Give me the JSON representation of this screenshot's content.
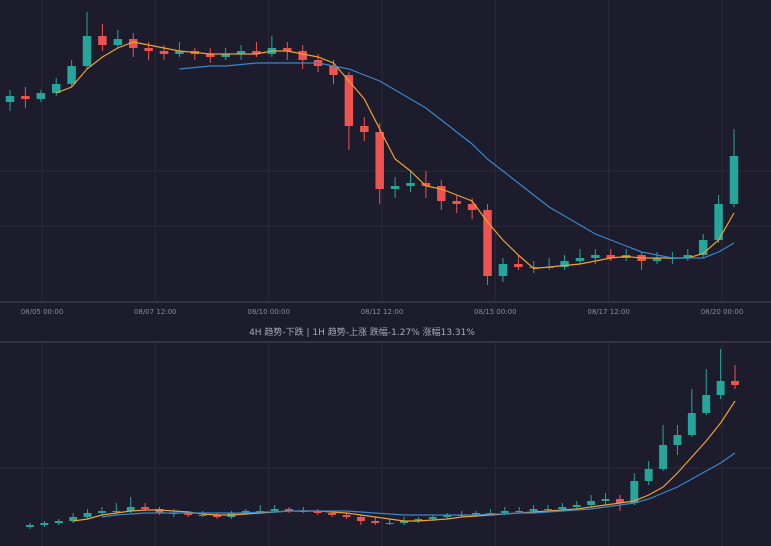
{
  "chart_data": [
    {
      "type": "candlestick",
      "up_color": "#26a69a",
      "down_color": "#ef5350",
      "ylim": [
        0,
        100
      ],
      "x_labels": [
        "08/05 00:00",
        "08/07 12:00",
        "08/10 00:00",
        "08/12 12:00",
        "08/15 00:00",
        "08/17 12:00",
        "08/20 00:00"
      ],
      "candles": [
        [
          66,
          70,
          63,
          68
        ],
        [
          68,
          71,
          64,
          67
        ],
        [
          67,
          70,
          66,
          69
        ],
        [
          69,
          74,
          68,
          72
        ],
        [
          72,
          80,
          71,
          78
        ],
        [
          78,
          96,
          77,
          88
        ],
        [
          88,
          92,
          83,
          85
        ],
        [
          85,
          90,
          84,
          87
        ],
        [
          87,
          89,
          81,
          84
        ],
        [
          84,
          86,
          80,
          83
        ],
        [
          83,
          85,
          80,
          82
        ],
        [
          82,
          86,
          81,
          83
        ],
        [
          83,
          84,
          80,
          82
        ],
        [
          82,
          84,
          79,
          81
        ],
        [
          81,
          84,
          80,
          82
        ],
        [
          82,
          85,
          80,
          83
        ],
        [
          83,
          86,
          81,
          82
        ],
        [
          82,
          88,
          81,
          84
        ],
        [
          84,
          86,
          80,
          83
        ],
        [
          83,
          85,
          77,
          80
        ],
        [
          80,
          82,
          76,
          78
        ],
        [
          78,
          80,
          72,
          75
        ],
        [
          75,
          76,
          50,
          58
        ],
        [
          58,
          61,
          53,
          56
        ],
        [
          56,
          59,
          32,
          37
        ],
        [
          37,
          41,
          34,
          38
        ],
        [
          38,
          43,
          36,
          39
        ],
        [
          39,
          43,
          34,
          38
        ],
        [
          38,
          40,
          30,
          33
        ],
        [
          33,
          35,
          29,
          32
        ],
        [
          32,
          34,
          27,
          30
        ],
        [
          30,
          32,
          5,
          8
        ],
        [
          8,
          14,
          6,
          12
        ],
        [
          12,
          15,
          10,
          11
        ],
        [
          11,
          13,
          9,
          11
        ],
        [
          11,
          14,
          10,
          11
        ],
        [
          11,
          15,
          10,
          13
        ],
        [
          13,
          17,
          12,
          14
        ],
        [
          14,
          17,
          12,
          15
        ],
        [
          15,
          17,
          13,
          14
        ],
        [
          14,
          17,
          13,
          15
        ],
        [
          15,
          16,
          10,
          13
        ],
        [
          13,
          16,
          12,
          14
        ],
        [
          14,
          16,
          12,
          14
        ],
        [
          14,
          17,
          13,
          15
        ],
        [
          15,
          22,
          14,
          20
        ],
        [
          20,
          35,
          19,
          32
        ],
        [
          32,
          57,
          31,
          48
        ]
      ],
      "series": [
        {
          "color": "#f0a030",
          "values": [
            null,
            null,
            null,
            69,
            71,
            77,
            81,
            84,
            86,
            85,
            84,
            83,
            82.5,
            82,
            82,
            82,
            82,
            83,
            83,
            82,
            81,
            79,
            73,
            67,
            57,
            47,
            43,
            38,
            37,
            35,
            33,
            26,
            20,
            15,
            10.5,
            11,
            11.5,
            12,
            13,
            14,
            14.5,
            14,
            14,
            14,
            14,
            15.5,
            20,
            29
          ]
        },
        {
          "color": "#3a86c8",
          "values": [
            null,
            null,
            null,
            null,
            null,
            null,
            null,
            null,
            null,
            null,
            null,
            77,
            77.5,
            78,
            78,
            78.5,
            79,
            79,
            79,
            79,
            79,
            78,
            77,
            75,
            73,
            70,
            67,
            64,
            60,
            56,
            52,
            47,
            43,
            39,
            35,
            31,
            28,
            25,
            22,
            20,
            18,
            16,
            15,
            14,
            14,
            14,
            16,
            19
          ]
        }
      ]
    },
    {
      "type": "candlestick",
      "up_color": "#26a69a",
      "down_color": "#ef5350",
      "ylim": [
        0,
        100
      ],
      "candles": [
        [
          9,
          11,
          8,
          10
        ],
        [
          10,
          12,
          9,
          11
        ],
        [
          11,
          13,
          10,
          12
        ],
        [
          12,
          16,
          11,
          14
        ],
        [
          14,
          18,
          13,
          16
        ],
        [
          16,
          19,
          15,
          17
        ],
        [
          17,
          21,
          15,
          17
        ],
        [
          17,
          24,
          16,
          19
        ],
        [
          19,
          21,
          17,
          18
        ],
        [
          18,
          19,
          15,
          16
        ],
        [
          16,
          18,
          14,
          16
        ],
        [
          16,
          17,
          14,
          15
        ],
        [
          15,
          17,
          14,
          15
        ],
        [
          15,
          16,
          13,
          14
        ],
        [
          14,
          17,
          13,
          16
        ],
        [
          16,
          18,
          15,
          17
        ],
        [
          17,
          20,
          16,
          17
        ],
        [
          17,
          20,
          16,
          18
        ],
        [
          18,
          19,
          16,
          17
        ],
        [
          17,
          19,
          16,
          17
        ],
        [
          17,
          18,
          15,
          16
        ],
        [
          16,
          17,
          14,
          15
        ],
        [
          15,
          16,
          13,
          14
        ],
        [
          14,
          15,
          10,
          12
        ],
        [
          12,
          14,
          10,
          11
        ],
        [
          11,
          13,
          10,
          11
        ],
        [
          11,
          14,
          10,
          12
        ],
        [
          12,
          14,
          11,
          13
        ],
        [
          13,
          15,
          12,
          14
        ],
        [
          14,
          16,
          13,
          15
        ],
        [
          15,
          17,
          14,
          15
        ],
        [
          15,
          17,
          14,
          16
        ],
        [
          16,
          18,
          15,
          16
        ],
        [
          16,
          19,
          15,
          17
        ],
        [
          17,
          19,
          16,
          17
        ],
        [
          17,
          20,
          16,
          18
        ],
        [
          18,
          20,
          17,
          18
        ],
        [
          18,
          21,
          17,
          19
        ],
        [
          19,
          22,
          18,
          20
        ],
        [
          20,
          25,
          19,
          22
        ],
        [
          22,
          26,
          20,
          23
        ],
        [
          23,
          25,
          17,
          21
        ],
        [
          21,
          36,
          20,
          32
        ],
        [
          32,
          42,
          30,
          38
        ],
        [
          38,
          60,
          37,
          50
        ],
        [
          50,
          60,
          45,
          55
        ],
        [
          55,
          78,
          54,
          66
        ],
        [
          66,
          88,
          65,
          75
        ],
        [
          75,
          98,
          73,
          82
        ],
        [
          82,
          90,
          78,
          80
        ]
      ],
      "series": [
        {
          "color": "#f0a030",
          "values": [
            null,
            null,
            null,
            12,
            13,
            15,
            16,
            17,
            17.5,
            17.5,
            17,
            16.5,
            15.5,
            15,
            15,
            15.5,
            16,
            16.5,
            17,
            17,
            17,
            16.5,
            16,
            15,
            14,
            13,
            12,
            12,
            12.5,
            13,
            14,
            14.5,
            15,
            15.5,
            16,
            16.5,
            17,
            17.5,
            18,
            19,
            20,
            21,
            22,
            25,
            29,
            36,
            44,
            52,
            61,
            72
          ]
        },
        {
          "color": "#3a86c8",
          "values": [
            null,
            null,
            null,
            null,
            null,
            14,
            15,
            15.5,
            16,
            16,
            16,
            16,
            16,
            16,
            16,
            16,
            16.5,
            16.5,
            17,
            17,
            17,
            17,
            17,
            16.5,
            16,
            15.5,
            15,
            15,
            15,
            15,
            15,
            15,
            15.5,
            15.5,
            16,
            16,
            16.5,
            17,
            17.5,
            18,
            19,
            20,
            21,
            23,
            26,
            29,
            33,
            37,
            41,
            46
          ]
        }
      ]
    }
  ],
  "status_text": "4H 趋势-下跌  |  1H 趋势-上涨  跌幅-1.27% 涨幅13.31%"
}
